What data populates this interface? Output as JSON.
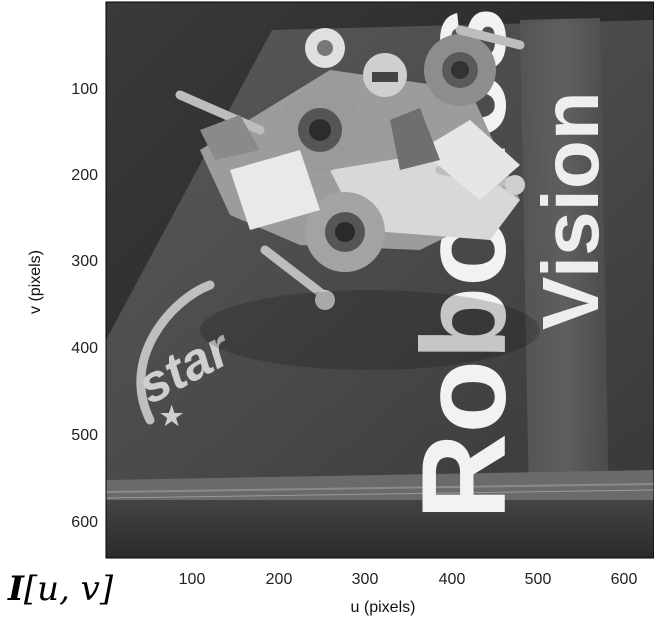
{
  "figure": {
    "image_label": "I[u, v]",
    "image_label_symbol": "I",
    "image_label_args": "[u, v]",
    "xlabel": "u (pixels)",
    "ylabel": "v (pixels)",
    "x_ticks": [
      "100",
      "200",
      "300",
      "400",
      "500",
      "600"
    ],
    "y_ticks": [
      "100",
      "200",
      "300",
      "400",
      "500",
      "600"
    ],
    "colormap": "grayscale"
  },
  "photo": {
    "subject": "lego-starfighter-on-book",
    "book_title": "Robotics",
    "book_subtitle": "Vision",
    "book_logo": "star"
  }
}
